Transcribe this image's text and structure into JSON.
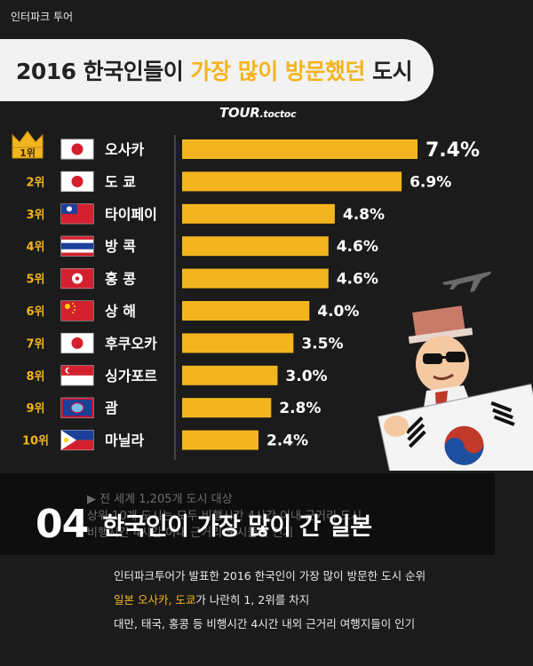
{
  "brand": "인터파크 투어",
  "title": {
    "part1": "2016 한국인들이 ",
    "part2": "가장 많이 방문했던",
    "part3": " 도시"
  },
  "logo": {
    "main": "TOUR",
    "sub": ".toctoc"
  },
  "colors": {
    "accent": "#f3b51f",
    "bar": "#f3b51f",
    "title_bg": "#f2f2f2",
    "background": "#1b1b1b"
  },
  "chart_data": {
    "type": "bar",
    "orientation": "horizontal",
    "ranks": [
      "1위",
      "2위",
      "3위",
      "4위",
      "5위",
      "6위",
      "7위",
      "8위",
      "9위",
      "10위"
    ],
    "categories": [
      "오사카",
      "도 쿄",
      "타이페이",
      "방 콕",
      "홍 콩",
      "상 해",
      "후쿠오카",
      "싱가포르",
      "괌",
      "마닐라"
    ],
    "values": [
      7.4,
      6.9,
      4.8,
      4.6,
      4.6,
      4.0,
      3.5,
      3.0,
      2.8,
      2.4
    ],
    "value_labels": [
      "7.4%",
      "6.9%",
      "4.8%",
      "4.6%",
      "4.6%",
      "4.0%",
      "3.5%",
      "3.0%",
      "2.8%",
      "2.4%"
    ],
    "flags": [
      "japan-flag",
      "japan-flag",
      "taiwan-flag",
      "thailand-flag",
      "hongkong-flag",
      "china-flag",
      "japan-flag",
      "singapore-flag",
      "guam-flag",
      "philippines-flag"
    ],
    "unit": "%",
    "xlim": [
      0,
      8
    ]
  },
  "ghost_text": [
    "▶ 전 세계 1,205개 도시 대상",
    "상위 10개 도시는 모두 비행시간 4시간 이내 근거리 도시",
    "비행시간 4시간 이내 근거리 도시들이 인기"
  ],
  "headline": {
    "number": "04",
    "text": "한국인이 가장 많이 간 일본"
  },
  "body": {
    "line1": "인터파크투어가 발표한 2016 한국인이 가장 많이 방문한 도시 순위",
    "line2_accent": "일본 오사카, 도쿄",
    "line2_rest": "가 나란히 1, 2위를 차지",
    "line3": "대만, 태국, 홍콩 등 비행시간 4시간 내외 근거리 여행지들이 인기"
  }
}
